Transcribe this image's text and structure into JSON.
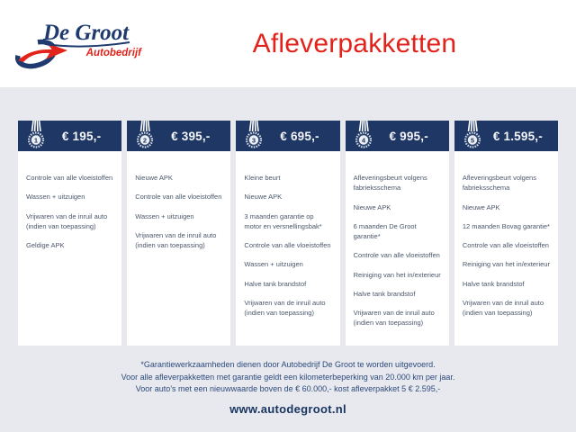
{
  "brand": {
    "name": "De Groot",
    "subtitle": "Autobedrijf"
  },
  "header": {
    "title": "Afleverpakketten"
  },
  "packages": [
    {
      "rank": "1",
      "price": "€ 195,-",
      "items": [
        "Controle van alle vloeistoffen",
        "Wassen + uitzuigen",
        "Vrijwaren van de inruil auto (indien van toepassing)",
        "Geldige APK"
      ]
    },
    {
      "rank": "2",
      "price": "€ 395,-",
      "items": [
        "Nieuwe APK",
        "Controle van alle vloeistoffen",
        "Wassen + uitzuigen",
        "Vrijwaren van de inruil auto (indien van toepassing)"
      ]
    },
    {
      "rank": "3",
      "price": "€ 695,-",
      "items": [
        "Kleine beurt",
        "Nieuwe APK",
        "3 maanden garantie op motor en versnellingsbak*",
        "Controle van alle vloeistoffen",
        "Wassen + uitzuigen",
        "Halve tank brandstof",
        "Vrijwaren van de inruil auto (indien van toepassing)"
      ]
    },
    {
      "rank": "4",
      "price": "€ 995,-",
      "items": [
        "Afleveringsbeurt volgens fabrieksschema",
        "Nieuwe APK",
        "6 maanden De Groot garantie*",
        "Controle van alle vloeistoffen",
        "Reiniging van het in/exterieur",
        "Halve tank brandstof",
        "Vrijwaren van de inruil auto (indien van toepassing)"
      ]
    },
    {
      "rank": "5",
      "price": "€ 1.595,-",
      "items": [
        "Afleveringsbeurt volgens fabrieksschema",
        "Nieuwe APK",
        "12 maanden Bovag garantie*",
        "Controle van alle vloeistoffen",
        "Reiniging van het in/exterieur",
        "Halve tank brandstof",
        "Vrijwaren van de inruil auto (indien van toepassing)"
      ]
    }
  ],
  "footer": {
    "notes": [
      "*Garantiewerkzaamheden dienen door Autobedrijf De Groot te worden uitgevoerd.",
      "Voor alle afleverpakketten met garantie geldt een kilometerbeperking van 20.000 km per jaar.",
      "Voor auto's met een nieuwwaarde boven de € 60.000,- kost afleverpakket 5 € 2.595,-"
    ],
    "website": "www.autodegroot.nl"
  },
  "icons": {
    "medal": "medal-ribbon-icon"
  },
  "colors": {
    "navy": "#1f3765",
    "red": "#e2231b",
    "page_background": "#e8e9ee",
    "body_text": "#4a576b",
    "footer_text": "#2c4a7c"
  }
}
